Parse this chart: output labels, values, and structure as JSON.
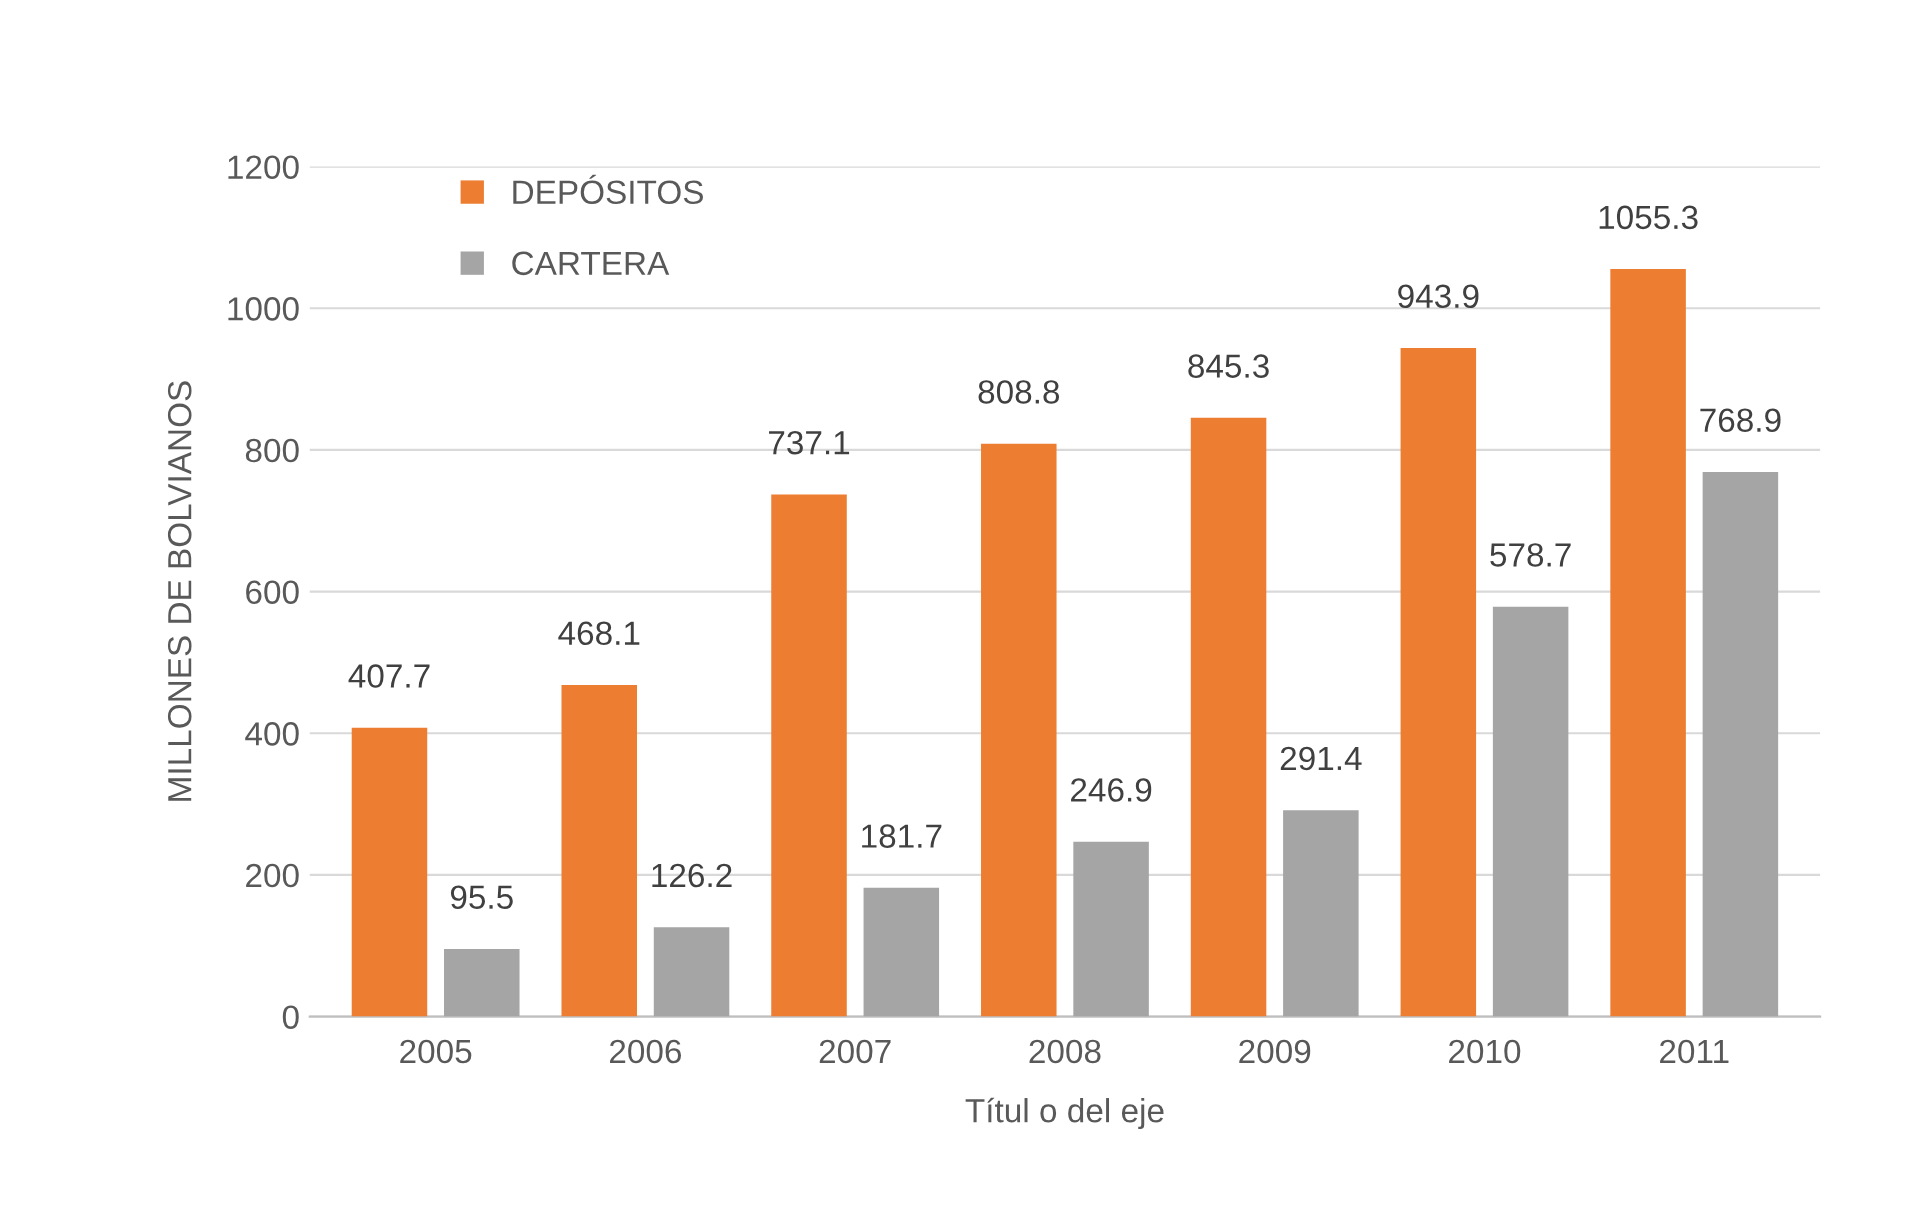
{
  "chart_data": {
    "type": "bar",
    "xlabel": "Títul o del eje",
    "ylabel": "MILLONES DE BOLVIANOS",
    "categories": [
      "2005",
      "2006",
      "2007",
      "2008",
      "2009",
      "2010",
      "2011"
    ],
    "series": [
      {
        "name": "DEPÓSITOS",
        "color": "#ed7d31",
        "values": [
          407.7,
          468.1,
          737.1,
          808.8,
          845.3,
          943.9,
          1055.3
        ]
      },
      {
        "name": "CARTERA",
        "color": "#a5a5a5",
        "values": [
          95.5,
          126.2,
          181.7,
          246.9,
          291.4,
          578.7,
          768.9
        ]
      }
    ],
    "ylim": [
      0,
      1200
    ],
    "yticks": [
      0,
      200,
      400,
      600,
      800,
      1000,
      1200
    ],
    "grid": "y",
    "legend": "top left",
    "data_labels": true
  }
}
